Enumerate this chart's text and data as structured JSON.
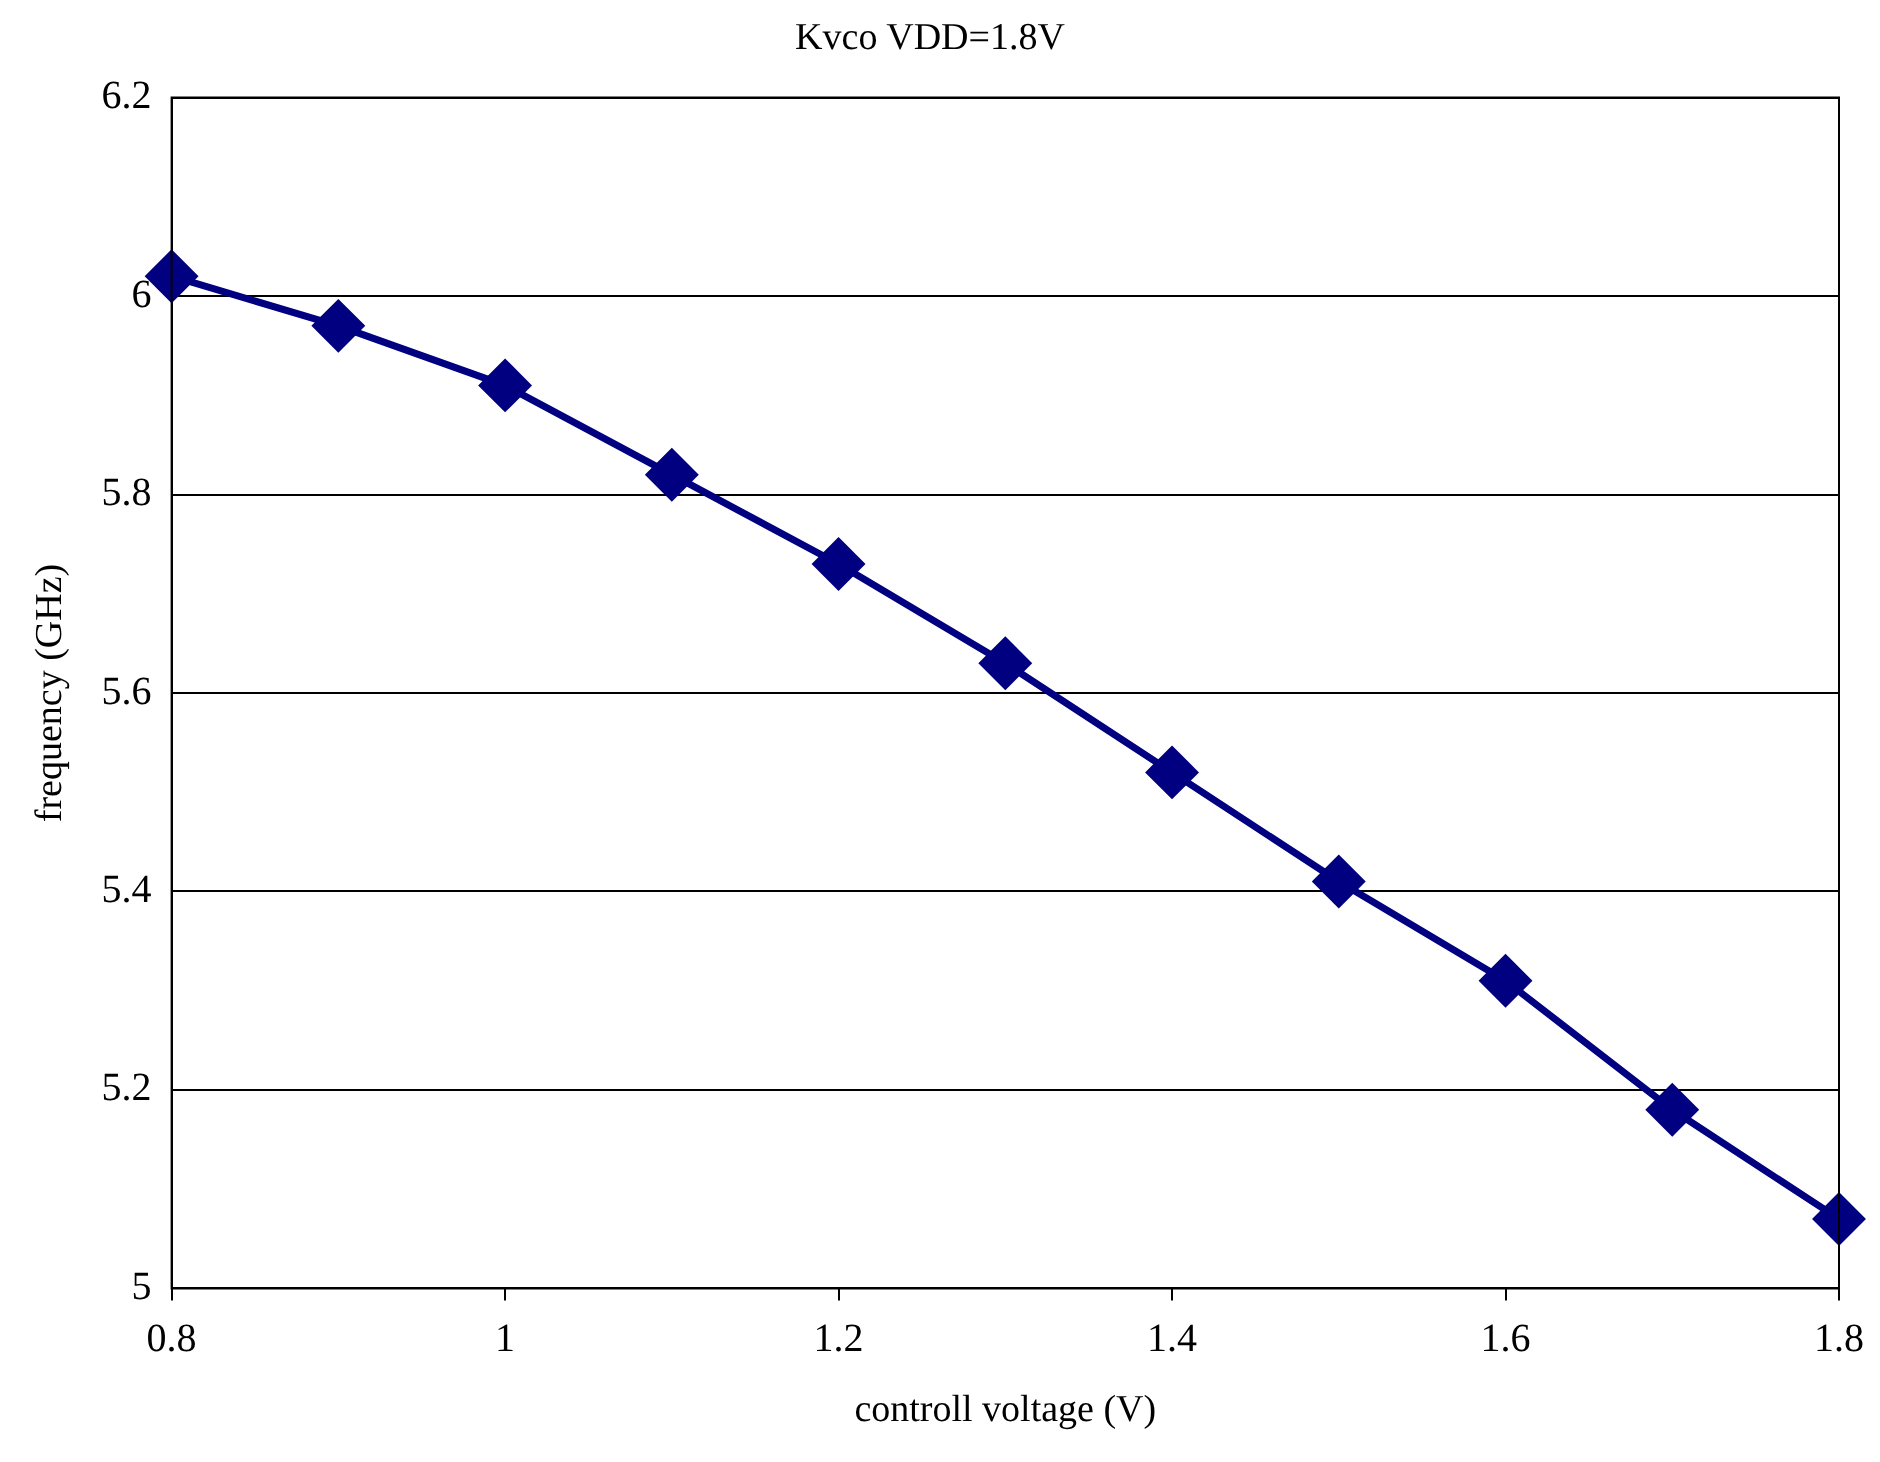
{
  "chart_data": {
    "type": "line",
    "title": "Kvco VDD=1.8V",
    "xlabel": "controll voltage (V)",
    "ylabel": "frequency (GHz)",
    "x": [
      0.8,
      0.9,
      1.0,
      1.1,
      1.2,
      1.3,
      1.4,
      1.5,
      1.6,
      1.7,
      1.8
    ],
    "series": [
      {
        "color": "#000080",
        "values": [
          6.02,
          5.97,
          5.91,
          5.82,
          5.73,
          5.63,
          5.52,
          5.41,
          5.31,
          5.18,
          5.07
        ]
      }
    ],
    "xlim": [
      0.8,
      1.8
    ],
    "xticks": [
      0.8,
      1,
      1.2,
      1.4,
      1.6,
      1.8
    ],
    "ylim": [
      5,
      6.2
    ],
    "yticks": [
      5,
      5.2,
      5.4,
      5.6,
      5.8,
      6,
      6.2
    ],
    "grid": "y",
    "legend": false,
    "marker": "diamond",
    "line_style": "solid"
  }
}
